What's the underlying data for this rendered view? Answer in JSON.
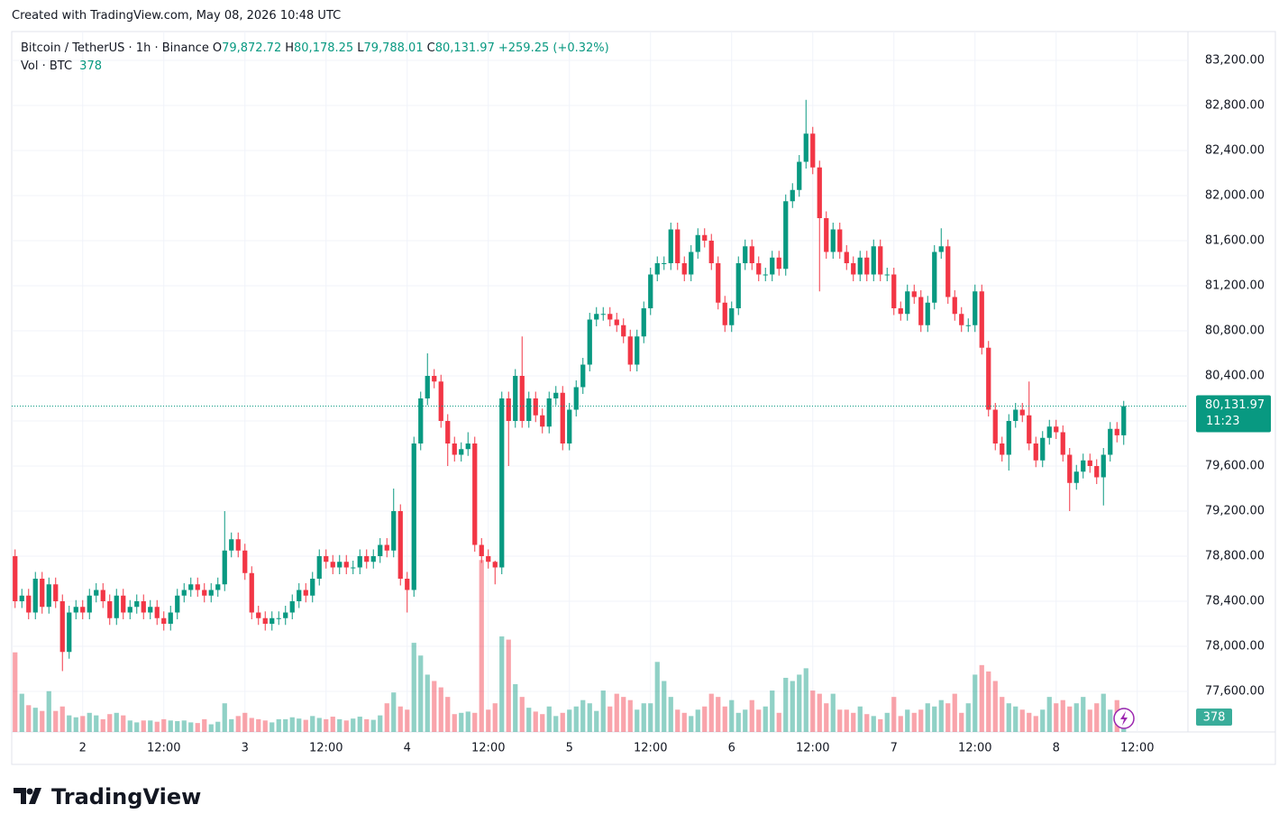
{
  "header": {
    "credit": "Created with TradingView.com, May 08, 2026 10:48 UTC",
    "brand": "TradingView"
  },
  "chart_data": {
    "type": "candlestick",
    "symbol": "Bitcoin / TetherUS · 1h · Binance",
    "ohlc_legend": [
      {
        "key": "O",
        "value": "79,872.72"
      },
      {
        "key": "H",
        "value": "80,178.25"
      },
      {
        "key": "L",
        "value": "79,788.01"
      },
      {
        "key": "C",
        "value": "80,131.97"
      }
    ],
    "change": "+259.25 (+0.32%)",
    "volume_legend": "Vol · BTC",
    "last_price": {
      "value": 80131.97,
      "label": "80,131.97"
    },
    "countdown": "11:23",
    "last_volume": {
      "value": 378,
      "label": "378"
    },
    "up_color": "#089981",
    "down_color": "#f23645",
    "grid": true,
    "xlim": [
      -0.5,
      173.5
    ],
    "ylim": [
      77240,
      83456
    ],
    "vlim": [
      0,
      11000
    ],
    "yticks": [
      {
        "value": 77600,
        "label": "77,600.00"
      },
      {
        "value": 78000,
        "label": "78,000.00"
      },
      {
        "value": 78400,
        "label": "78,400.00"
      },
      {
        "value": 78800,
        "label": "78,800.00"
      },
      {
        "value": 79200,
        "label": "79,200.00"
      },
      {
        "value": 79600,
        "label": "79,600.00"
      },
      {
        "value": 80000,
        "label": "80,000.00"
      },
      {
        "value": 80400,
        "label": "80,400.00"
      },
      {
        "value": 80800,
        "label": "80,800.00"
      },
      {
        "value": 81200,
        "label": "81,200.00"
      },
      {
        "value": 81600,
        "label": "81,600.00"
      },
      {
        "value": 82000,
        "label": "82,000.00"
      },
      {
        "value": 82400,
        "label": "82,400.00"
      },
      {
        "value": 82800,
        "label": "82,800.00"
      },
      {
        "value": 83200,
        "label": "83,200.00"
      }
    ],
    "xticks": [
      {
        "value": 10,
        "label": "2"
      },
      {
        "value": 22,
        "label": "12:00"
      },
      {
        "value": 34,
        "label": "3"
      },
      {
        "value": 46,
        "label": "12:00"
      },
      {
        "value": 58,
        "label": "4"
      },
      {
        "value": 70,
        "label": "12:00"
      },
      {
        "value": 82,
        "label": "5"
      },
      {
        "value": 94,
        "label": "12:00"
      },
      {
        "value": 106,
        "label": "6"
      },
      {
        "value": 118,
        "label": "12:00"
      },
      {
        "value": 130,
        "label": "7"
      },
      {
        "value": 142,
        "label": "12:00"
      },
      {
        "value": 154,
        "label": "8"
      },
      {
        "value": 166,
        "label": "12:00"
      }
    ],
    "open": [
      78800,
      78400,
      78450,
      78300,
      78600,
      78350,
      78550,
      78400,
      77950,
      78300,
      78350,
      78300,
      78450,
      78500,
      78400,
      78250,
      78450,
      78300,
      78350,
      78400,
      78300,
      78350,
      78250,
      78200,
      78300,
      78450,
      78500,
      78550,
      78500,
      78450,
      78500,
      78550,
      78850,
      78950,
      78850,
      78650,
      78300,
      78250,
      78200,
      78250,
      78250,
      78300,
      78400,
      78500,
      78450,
      78600,
      78800,
      78750,
      78700,
      78750,
      78700,
      78700,
      78800,
      78750,
      78800,
      78900,
      78850,
      79200,
      78600,
      78500,
      79800,
      80200,
      80400,
      80350,
      80000,
      79800,
      79700,
      79750,
      79800,
      78900,
      78800,
      78750,
      78700,
      80200,
      80000,
      80400,
      80000,
      80200,
      80050,
      79950,
      80200,
      80250,
      79800,
      80100,
      80300,
      80500,
      80900,
      80950,
      80950,
      80900,
      80850,
      80750,
      80500,
      80750,
      81000,
      81300,
      81400,
      81400,
      81700,
      81400,
      81300,
      81500,
      81650,
      81600,
      81400,
      81050,
      80850,
      81000,
      81400,
      81550,
      81400,
      81300,
      81300,
      81450,
      81350,
      81950,
      82050,
      82300,
      82550,
      82250,
      81800,
      81500,
      81700,
      81500,
      81400,
      81300,
      81450,
      81300,
      81550,
      81300,
      81300,
      81000,
      80950,
      81150,
      81100,
      80850,
      81050,
      81500,
      81550,
      81100,
      80950,
      80850,
      80850,
      81150,
      80650,
      80100,
      79800,
      79700,
      80000,
      80100,
      80050,
      79800,
      79650,
      79850,
      79950,
      79900,
      79700,
      79450,
      79550,
      79650,
      79600,
      79500,
      79700,
      79930,
      79872.72
    ],
    "high": [
      78860,
      78510,
      78510,
      78660,
      78660,
      78610,
      78610,
      78460,
      78360,
      78410,
      78410,
      78510,
      78560,
      78560,
      78460,
      78510,
      78510,
      78410,
      78460,
      78460,
      78410,
      78410,
      78310,
      78360,
      78510,
      78560,
      78610,
      78610,
      78560,
      78560,
      78610,
      79200,
      79010,
      79010,
      78910,
      78710,
      78360,
      78310,
      78310,
      78310,
      78360,
      78460,
      78560,
      78560,
      78660,
      78860,
      78860,
      78810,
      78810,
      78810,
      78760,
      78860,
      78860,
      78860,
      78960,
      78960,
      79400,
      79260,
      78660,
      79860,
      80260,
      80600,
      80460,
      80410,
      80060,
      79860,
      79810,
      79900,
      79860,
      78960,
      78860,
      78760,
      80260,
      80260,
      80460,
      80750,
      80260,
      80260,
      80110,
      80260,
      80310,
      80310,
      80160,
      80360,
      80560,
      80960,
      81010,
      81010,
      81010,
      80960,
      80910,
      80810,
      80810,
      81060,
      81360,
      81460,
      81460,
      81760,
      81760,
      81460,
      81560,
      81710,
      81710,
      81660,
      81460,
      81110,
      81060,
      81460,
      81610,
      81610,
      81460,
      81360,
      81510,
      81510,
      82010,
      82110,
      82360,
      82850,
      82610,
      82310,
      81860,
      81760,
      81760,
      81560,
      81460,
      81510,
      81510,
      81610,
      81610,
      81360,
      81360,
      81060,
      81210,
      81210,
      81160,
      81110,
      81560,
      81710,
      81610,
      81160,
      81010,
      80910,
      81210,
      81210,
      80710,
      80160,
      79860,
      80060,
      80160,
      80160,
      80350,
      79860,
      79910,
      80010,
      80010,
      79960,
      79760,
      79610,
      79710,
      79710,
      79660,
      79760,
      79990,
      79990,
      80178.25
    ],
    "low": [
      78340,
      78340,
      78240,
      78240,
      78290,
      78290,
      78340,
      77780,
      77890,
      78240,
      78240,
      78240,
      78390,
      78340,
      78190,
      78190,
      78240,
      78240,
      78290,
      78240,
      78240,
      78190,
      78140,
      78140,
      78240,
      78390,
      78440,
      78440,
      78390,
      78390,
      78440,
      78490,
      78790,
      78790,
      78590,
      78240,
      78190,
      78140,
      78140,
      78190,
      78190,
      78240,
      78340,
      78390,
      78390,
      78540,
      78690,
      78640,
      78640,
      78640,
      78640,
      78640,
      78690,
      78690,
      78740,
      78790,
      78790,
      78540,
      78300,
      78440,
      79740,
      80140,
      80290,
      79940,
      79600,
      79640,
      79640,
      79690,
      78840,
      78740,
      78690,
      78550,
      78640,
      79600,
      79940,
      79940,
      79940,
      79990,
      79890,
      79890,
      80140,
      79740,
      79740,
      80040,
      80240,
      80440,
      80840,
      80890,
      80840,
      80790,
      80690,
      80440,
      80440,
      80690,
      80940,
      81240,
      81340,
      81340,
      81340,
      81240,
      81240,
      81440,
      81540,
      81340,
      80990,
      80790,
      80790,
      80940,
      81340,
      81340,
      81240,
      81240,
      81240,
      81290,
      81290,
      81890,
      81990,
      82240,
      82190,
      81150,
      81440,
      81440,
      81440,
      81340,
      81240,
      81240,
      81240,
      81240,
      81240,
      81240,
      80940,
      80890,
      80890,
      81040,
      80790,
      80790,
      80990,
      81440,
      81040,
      80890,
      80790,
      80790,
      80790,
      80590,
      80040,
      79740,
      79640,
      79560,
      79940,
      79990,
      79740,
      79590,
      79590,
      79790,
      79840,
      79640,
      79200,
      79390,
      79490,
      79540,
      79440,
      79250,
      79640,
      79810,
      79788.01
    ],
    "close": [
      78400,
      78450,
      78300,
      78600,
      78350,
      78550,
      78400,
      77950,
      78300,
      78350,
      78300,
      78450,
      78500,
      78400,
      78250,
      78450,
      78300,
      78350,
      78400,
      78300,
      78350,
      78250,
      78200,
      78300,
      78450,
      78500,
      78550,
      78500,
      78450,
      78500,
      78550,
      78850,
      78950,
      78850,
      78650,
      78300,
      78250,
      78200,
      78250,
      78250,
      78300,
      78400,
      78500,
      78450,
      78600,
      78800,
      78750,
      78700,
      78750,
      78700,
      78700,
      78800,
      78750,
      78800,
      78900,
      78850,
      79200,
      78600,
      78500,
      79800,
      80200,
      80400,
      80350,
      80000,
      79800,
      79700,
      79750,
      79800,
      78900,
      78800,
      78750,
      78700,
      80200,
      80000,
      80400,
      80000,
      80200,
      80050,
      79950,
      80200,
      80250,
      79800,
      80100,
      80300,
      80500,
      80900,
      80950,
      80950,
      80900,
      80850,
      80750,
      80500,
      80750,
      81000,
      81300,
      81400,
      81400,
      81700,
      81400,
      81300,
      81500,
      81650,
      81600,
      81400,
      81050,
      80850,
      81000,
      81400,
      81550,
      81400,
      81300,
      81300,
      81450,
      81350,
      81950,
      82050,
      82300,
      82550,
      82250,
      81800,
      81500,
      81700,
      81500,
      81400,
      81300,
      81450,
      81300,
      81550,
      81300,
      81300,
      81000,
      80950,
      81150,
      81100,
      80850,
      81050,
      81500,
      81550,
      81100,
      80950,
      80850,
      80850,
      81150,
      80650,
      80100,
      79800,
      79700,
      80000,
      80100,
      80050,
      79800,
      79650,
      79850,
      79950,
      79900,
      79700,
      79450,
      79550,
      79650,
      79600,
      79500,
      79700,
      79930,
      79872.72,
      80131.97
    ],
    "volume": [
      1250,
      600,
      420,
      380,
      330,
      640,
      330,
      400,
      260,
      230,
      250,
      300,
      260,
      200,
      280,
      300,
      260,
      180,
      150,
      180,
      180,
      160,
      200,
      180,
      170,
      180,
      150,
      140,
      200,
      120,
      160,
      450,
      200,
      250,
      300,
      220,
      200,
      180,
      150,
      200,
      200,
      230,
      210,
      190,
      250,
      220,
      200,
      240,
      200,
      180,
      210,
      240,
      200,
      190,
      260,
      450,
      620,
      400,
      350,
      1400,
      1200,
      900,
      800,
      700,
      550,
      280,
      300,
      320,
      300,
      2700,
      350,
      450,
      1500,
      1450,
      750,
      550,
      380,
      320,
      280,
      400,
      250,
      300,
      350,
      400,
      500,
      450,
      330,
      650,
      400,
      600,
      550,
      500,
      350,
      450,
      450,
      1100,
      800,
      550,
      350,
      300,
      250,
      350,
      400,
      600,
      550,
      400,
      500,
      300,
      350,
      500,
      350,
      400,
      650,
      300,
      850,
      800,
      900,
      1000,
      650,
      600,
      450,
      600,
      350,
      350,
      300,
      400,
      280,
      250,
      200,
      300,
      550,
      250,
      350,
      300,
      350,
      450,
      400,
      500,
      450,
      600,
      300,
      450,
      900,
      1050,
      950,
      800,
      550,
      450,
      400,
      350,
      300,
      250,
      350,
      550,
      450,
      500,
      400,
      450,
      550,
      350,
      450,
      600,
      350,
      500,
      378
    ]
  }
}
